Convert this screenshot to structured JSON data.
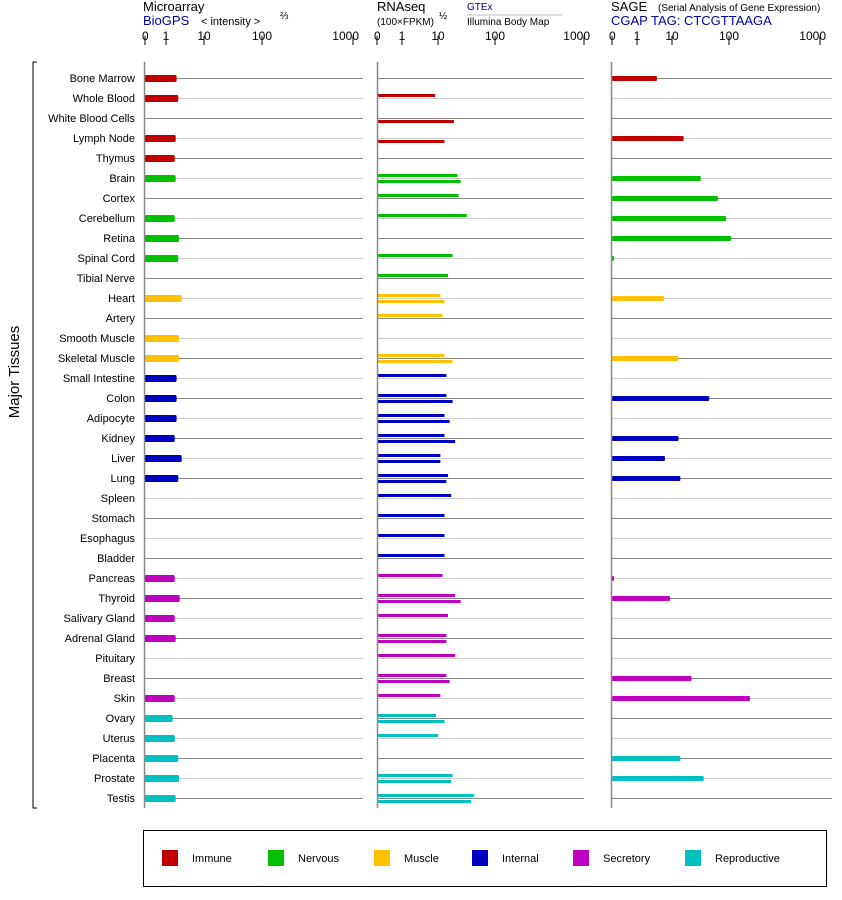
{
  "chart_data": {
    "type": "bar",
    "orientation": "horizontal",
    "ylabel": "Major Tissues",
    "axis_ticks": [
      "0",
      "1",
      "10",
      "100",
      "1000"
    ],
    "axis_values": [
      0,
      1,
      10,
      100,
      1000
    ],
    "panels": {
      "microarray": {
        "title": "Microarray",
        "source": "BioGPS",
        "scale_label": "< intensity >",
        "scale_exp": "⅔"
      },
      "rnaseq": {
        "title": "RNAseq",
        "scale_label": "(100×FPKM)",
        "scale_exp": "½",
        "source_top": "GTEx",
        "source_bottom": "Illumina Body Map"
      },
      "sage": {
        "title": "SAGE",
        "subtitle": "(Serial Analysis of Gene Expression)",
        "tag": "CGAP TAG: CTCGTTAAGA"
      }
    },
    "groups": [
      {
        "name": "Immune",
        "color": "#c00000"
      },
      {
        "name": "Nervous",
        "color": "#00c000"
      },
      {
        "name": "Muscle",
        "color": "#ffc000"
      },
      {
        "name": "Internal",
        "color": "#0000c0"
      },
      {
        "name": "Secretory",
        "color": "#c000c0"
      },
      {
        "name": "Reproductive",
        "color": "#00c0c0"
      }
    ],
    "tissues": [
      {
        "name": "Bone Marrow",
        "group": 0,
        "microarray": 1.9,
        "gtex": null,
        "illumina": null,
        "sage": 3.7
      },
      {
        "name": "Whole Blood",
        "group": 0,
        "microarray": 2.1,
        "gtex": 8.3,
        "illumina": null,
        "sage": null
      },
      {
        "name": "White Blood Cells",
        "group": 0,
        "microarray": null,
        "gtex": null,
        "illumina": 19,
        "sage": null
      },
      {
        "name": "Lymph Node",
        "group": 0,
        "microarray": 1.8,
        "gtex": null,
        "illumina": 13,
        "sage": 16
      },
      {
        "name": "Thymus",
        "group": 0,
        "microarray": 1.7,
        "gtex": null,
        "illumina": null,
        "sage": null
      },
      {
        "name": "Brain",
        "group": 1,
        "microarray": 1.8,
        "gtex": 22,
        "illumina": 25,
        "sage": 32
      },
      {
        "name": "Cortex",
        "group": 1,
        "microarray": null,
        "gtex": 23,
        "illumina": null,
        "sage": 64
      },
      {
        "name": "Cerebellum",
        "group": 1,
        "microarray": 1.7,
        "gtex": 32,
        "illumina": null,
        "sage": 89
      },
      {
        "name": "Retina",
        "group": 1,
        "microarray": 2.2,
        "gtex": null,
        "illumina": null,
        "sage": 105
      },
      {
        "name": "Spinal Cord",
        "group": 1,
        "microarray": 2.1,
        "gtex": 18,
        "illumina": null,
        "sage": 0.04
      },
      {
        "name": "Tibial Nerve",
        "group": 1,
        "microarray": null,
        "gtex": 15,
        "illumina": null,
        "sage": null
      },
      {
        "name": "Heart",
        "group": 2,
        "microarray": 2.6,
        "gtex": 11,
        "illumina": 13,
        "sage": 5.9
      },
      {
        "name": "Artery",
        "group": 2,
        "microarray": null,
        "gtex": 12,
        "illumina": null,
        "sage": null
      },
      {
        "name": "Smooth Muscle",
        "group": 2,
        "microarray": 2.2,
        "gtex": null,
        "illumina": null,
        "sage": null
      },
      {
        "name": "Skeletal Muscle",
        "group": 2,
        "microarray": 2.2,
        "gtex": 13,
        "illumina": 18,
        "sage": 13
      },
      {
        "name": "Small Intestine",
        "group": 3,
        "microarray": 1.9,
        "gtex": 14,
        "illumina": null,
        "sage": null
      },
      {
        "name": "Colon",
        "group": 3,
        "microarray": 1.9,
        "gtex": 14,
        "illumina": 18,
        "sage": 45
      },
      {
        "name": "Adipocyte",
        "group": 3,
        "microarray": 1.9,
        "gtex": 13,
        "illumina": 16,
        "sage": null
      },
      {
        "name": "Kidney",
        "group": 3,
        "microarray": 1.7,
        "gtex": 13,
        "illumina": 20,
        "sage": 13
      },
      {
        "name": "Liver",
        "group": 3,
        "microarray": 2.6,
        "gtex": 11,
        "illumina": 11,
        "sage": 6.3
      },
      {
        "name": "Lung",
        "group": 3,
        "microarray": 2.1,
        "gtex": 15,
        "illumina": 14,
        "sage": 14
      },
      {
        "name": "Spleen",
        "group": 3,
        "microarray": null,
        "gtex": 17,
        "illumina": null,
        "sage": null
      },
      {
        "name": "Stomach",
        "group": 3,
        "microarray": null,
        "gtex": 13,
        "illumina": null,
        "sage": null
      },
      {
        "name": "Esophagus",
        "group": 3,
        "microarray": null,
        "gtex": 13,
        "illumina": null,
        "sage": null
      },
      {
        "name": "Bladder",
        "group": 3,
        "microarray": null,
        "gtex": 13,
        "illumina": null,
        "sage": null
      },
      {
        "name": "Pancreas",
        "group": 4,
        "microarray": 1.7,
        "gtex": 12,
        "illumina": null,
        "sage": 0.04
      },
      {
        "name": "Thyroid",
        "group": 4,
        "microarray": 2.3,
        "gtex": 20,
        "illumina": 25,
        "sage": 8.8
      },
      {
        "name": "Salivary Gland",
        "group": 4,
        "microarray": 1.7,
        "gtex": 15,
        "illumina": null,
        "sage": null
      },
      {
        "name": "Adrenal Gland",
        "group": 4,
        "microarray": 1.8,
        "gtex": 14,
        "illumina": 14,
        "sage": null
      },
      {
        "name": "Pituitary",
        "group": 4,
        "microarray": null,
        "gtex": 20,
        "illumina": null,
        "sage": null
      },
      {
        "name": "Breast",
        "group": 4,
        "microarray": null,
        "gtex": 14,
        "illumina": 16,
        "sage": 22
      },
      {
        "name": "Skin",
        "group": 4,
        "microarray": 1.7,
        "gtex": 11,
        "illumina": null,
        "sage": 170
      },
      {
        "name": "Ovary",
        "group": 5,
        "microarray": 1.5,
        "gtex": 8.8,
        "illumina": 13,
        "sage": null
      },
      {
        "name": "Uterus",
        "group": 5,
        "microarray": 1.7,
        "gtex": 10,
        "illumina": null,
        "sage": null
      },
      {
        "name": "Placenta",
        "group": 5,
        "microarray": 2.1,
        "gtex": null,
        "illumina": null,
        "sage": 14
      },
      {
        "name": "Prostate",
        "group": 5,
        "microarray": 2.2,
        "gtex": 18,
        "illumina": 17,
        "sage": 36
      },
      {
        "name": "Testis",
        "group": 5,
        "microarray": 1.8,
        "gtex": 43,
        "illumina": 38,
        "sage": null
      }
    ],
    "legend_position": "bottom"
  }
}
